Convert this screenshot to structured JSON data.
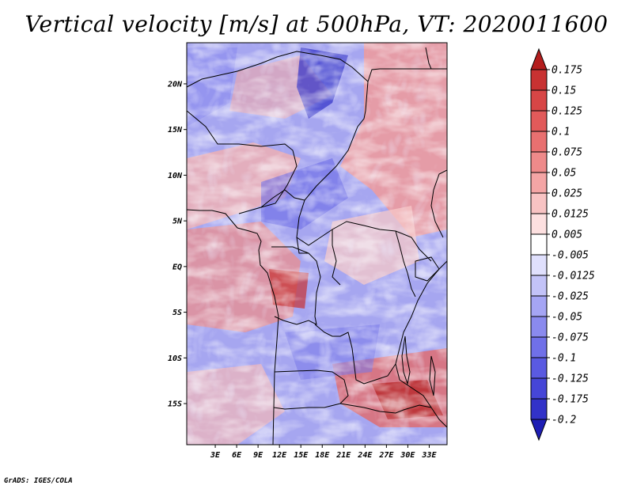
{
  "title": "Vertical velocity [m/s] at 500hPa, VT: 2020011600",
  "credit": "GrADS: IGES/COLA",
  "map": {
    "projection": "latlon",
    "lon_range": [
      -1,
      35.5
    ],
    "lat_range": [
      -19.5,
      24.5
    ],
    "lat_ticks": [
      {
        "value": 20,
        "label": "20N"
      },
      {
        "value": 15,
        "label": "15N"
      },
      {
        "value": 10,
        "label": "10N"
      },
      {
        "value": 5,
        "label": "5N"
      },
      {
        "value": 0,
        "label": "EQ"
      },
      {
        "value": -5,
        "label": "5S"
      },
      {
        "value": -10,
        "label": "10S"
      },
      {
        "value": -15,
        "label": "15S"
      }
    ],
    "lon_ticks": [
      {
        "value": 3,
        "label": "3E"
      },
      {
        "value": 6,
        "label": "6E"
      },
      {
        "value": 9,
        "label": "9E"
      },
      {
        "value": 12,
        "label": "12E"
      },
      {
        "value": 15,
        "label": "15E"
      },
      {
        "value": 18,
        "label": "18E"
      },
      {
        "value": 21,
        "label": "21E"
      },
      {
        "value": 24,
        "label": "24E"
      },
      {
        "value": 27,
        "label": "27E"
      },
      {
        "value": 30,
        "label": "30E"
      },
      {
        "value": 33,
        "label": "33E"
      }
    ],
    "field": "vertical velocity (shaded)",
    "colors": {
      "negative": "#4a4ae6",
      "positive": "#e65050",
      "neutral": "#ffffff",
      "boundaries": "#000000"
    }
  },
  "colorbar": {
    "labels": [
      "0.175",
      "0.15",
      "0.125",
      "0.1",
      "0.075",
      "0.05",
      "0.025",
      "0.0125",
      "0.005",
      "-0.005",
      "-0.0125",
      "-0.025",
      "-0.05",
      "-0.075",
      "-0.1",
      "-0.125",
      "-0.175",
      "-0.2"
    ],
    "colors": [
      "#b41e1e",
      "#c83232",
      "#d74646",
      "#e15a5a",
      "#e87070",
      "#ee8a8a",
      "#f4a5a5",
      "#f8c3c3",
      "#fde0e0",
      "#ffffff",
      "#e0e0fd",
      "#c3c3f8",
      "#a5a5f4",
      "#8a8aee",
      "#7070e8",
      "#5a5ae1",
      "#4646d7",
      "#3232c8",
      "#1e1eb4"
    ]
  }
}
